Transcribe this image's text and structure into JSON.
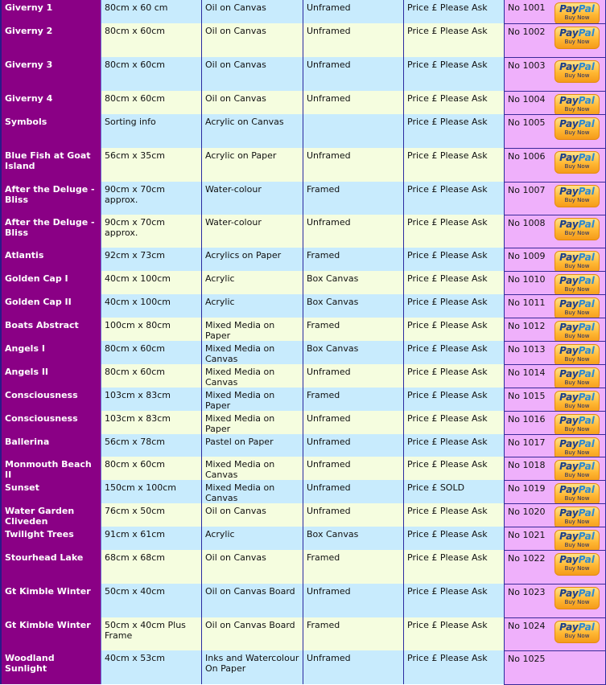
{
  "colors": {
    "name_col": "#8a0085",
    "row_blue": "#c8ebfd",
    "row_cream": "#f5fddf",
    "ref_col": "#efb0fb"
  },
  "paypal": {
    "brand_a": "Pay",
    "brand_b": "Pal",
    "action": "Buy Now"
  },
  "rows": [
    {
      "name": "Giverny 1",
      "size": "80cm x 60 cm",
      "medium": "Oil on Canvas",
      "frame": "Unframed",
      "price": "Price £ Please Ask",
      "ref": "No 1001",
      "buy": true
    },
    {
      "name": "Giverny 2",
      "size": "80cm x 60cm",
      "medium": "Oil on Canvas",
      "frame": "Unframed",
      "price": "Price £ Please Ask",
      "ref": "No 1002",
      "buy": true
    },
    {
      "name": "Giverny 3",
      "size": "80cm x 60cm",
      "medium": "Oil on Canvas",
      "frame": "Unframed",
      "price": "Price £ Please Ask",
      "ref": "No 1003",
      "buy": true
    },
    {
      "name": "Giverny 4",
      "size": "80cm x 60cm",
      "medium": "Oil on Canvas",
      "frame": "Unframed",
      "price": "Price £ Please Ask",
      "ref": "No 1004",
      "buy": true
    },
    {
      "name": "Symbols",
      "size": "Sorting info",
      "medium": "Acrylic on Canvas",
      "frame": "",
      "price": "Price £ Please Ask",
      "ref": "No 1005",
      "buy": true
    },
    {
      "name": "Blue Fish at Goat Island",
      "size": "56cm x 35cm",
      "medium": "Acrylic on Paper",
      "frame": "Unframed",
      "price": "Price £ Please Ask",
      "ref": "No 1006",
      "buy": true
    },
    {
      "name": "After the Deluge - Bliss",
      "size": "90cm x 70cm approx.",
      "medium": "Water-colour",
      "frame": "Framed",
      "price": "Price £ Please Ask",
      "ref": "No 1007",
      "buy": true
    },
    {
      "name": "After the Deluge - Bliss",
      "size": "90cm x 70cm approx.",
      "medium": "Water-colour",
      "frame": "Unframed",
      "price": "Price £ Please Ask",
      "ref": "No 1008",
      "buy": true
    },
    {
      "name": "Atlantis",
      "size": "92cm x 73cm",
      "medium": "Acrylics on Paper",
      "frame": "Framed",
      "price": "Price £ Please Ask",
      "ref": "No 1009",
      "buy": true
    },
    {
      "name": "Golden Cap I",
      "size": "40cm x 100cm",
      "medium": "Acrylic",
      "frame": "Box Canvas",
      "price": "Price £ Please Ask",
      "ref": "No 1010",
      "buy": true
    },
    {
      "name": "Golden Cap II",
      "size": "40cm x 100cm",
      "medium": "Acrylic",
      "frame": "Box Canvas",
      "price": "Price £ Please Ask",
      "ref": "No 1011",
      "buy": true
    },
    {
      "name": "Boats Abstract",
      "size": "100cm x 80cm",
      "medium": "Mixed Media on Paper",
      "frame": "Framed",
      "price": "Price £ Please Ask",
      "ref": "No 1012",
      "buy": true
    },
    {
      "name": "Angels I",
      "size": "80cm x 60cm",
      "medium": "Mixed Media on Canvas",
      "frame": "Box Canvas",
      "price": "Price £ Please Ask",
      "ref": "No 1013",
      "buy": true
    },
    {
      "name": "Angels II",
      "size": "80cm x 60cm",
      "medium": "Mixed Media on Canvas",
      "frame": "Unframed",
      "price": "Price £ Please Ask",
      "ref": "No 1014",
      "buy": true
    },
    {
      "name": "Consciousness",
      "size": "103cm x 83cm",
      "medium": "Mixed Media on Paper",
      "frame": "Framed",
      "price": "Price £ Please Ask",
      "ref": "No 1015",
      "buy": true
    },
    {
      "name": "Consciousness",
      "size": "103cm x 83cm",
      "medium": "Mixed Media on Paper",
      "frame": "Unframed",
      "price": "Price £ Please Ask",
      "ref": "No 1016",
      "buy": true
    },
    {
      "name": "Ballerina",
      "size": "56cm x 78cm",
      "medium": "Pastel on Paper",
      "frame": "Unframed",
      "price": "Price £ Please Ask",
      "ref": "No 1017",
      "buy": true
    },
    {
      "name": "Monmouth Beach II",
      "size": "80cm x 60cm",
      "medium": "Mixed Media on Canvas",
      "frame": "Unframed",
      "price": "Price £ Please Ask",
      "ref": "No 1018",
      "buy": true
    },
    {
      "name": "Sunset",
      "size": "150cm x 100cm",
      "medium": "Mixed Media on Canvas",
      "frame": "Unframed",
      "price": "Price £ SOLD",
      "ref": "No 1019",
      "buy": true
    },
    {
      "name": "Water Garden Cliveden",
      "size": "76cm x 50cm",
      "medium": "Oil on Canvas",
      "frame": "Unframed",
      "price": "Price £ Please Ask",
      "ref": "No 1020",
      "buy": true
    },
    {
      "name": "Twilight Trees",
      "size": "91cm x 61cm",
      "medium": "Acrylic",
      "frame": "Box Canvas",
      "price": "Price £ Please Ask",
      "ref": "No 1021",
      "buy": true
    },
    {
      "name": "Stourhead Lake",
      "size": "68cm x 68cm",
      "medium": "Oil on Canvas",
      "frame": "Framed",
      "price": "Price £ Please Ask",
      "ref": "No 1022",
      "buy": true
    },
    {
      "name": "Gt Kimble Winter",
      "size": "50cm x 40cm",
      "medium": "Oil on Canvas Board",
      "frame": "Unframed",
      "price": "Price £ Please Ask",
      "ref": "No 1023",
      "buy": true
    },
    {
      "name": "Gt Kimble Winter",
      "size": "50cm x 40cm Plus Frame",
      "medium": "Oil on Canvas Board",
      "frame": "Framed",
      "price": "Price £ Please Ask",
      "ref": "No 1024",
      "buy": true
    },
    {
      "name": "Woodland Sunlight",
      "size": "40cm x 53cm",
      "medium": "Inks and Watercolour On Paper",
      "frame": "Unframed",
      "price": "Price £ Please Ask",
      "ref": "No 1025",
      "buy": false
    }
  ]
}
